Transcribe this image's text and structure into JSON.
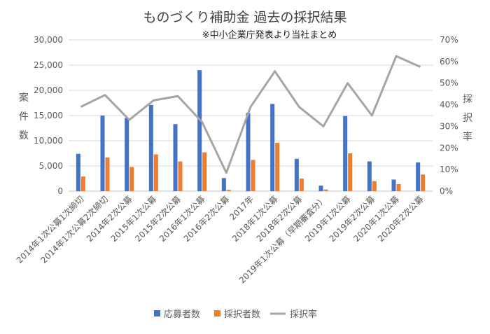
{
  "chart_data": {
    "type": "bar",
    "title": "ものづくり補助金 過去の採択結果",
    "subtitle": "※中小企業庁発表より当社まとめ",
    "ylabel": "案件数",
    "y2label": "採択率",
    "ylim": [
      0,
      30000
    ],
    "y2lim": [
      0,
      0.7
    ],
    "yticks": [
      "0",
      "5,000",
      "10,000",
      "15,000",
      "20,000",
      "25,000",
      "30,000"
    ],
    "y2ticks": [
      "0%",
      "10%",
      "20%",
      "30%",
      "40%",
      "50%",
      "60%",
      "70%"
    ],
    "grid": true,
    "legend_position": "bottom",
    "categories": [
      "2014年1次公募1次締切",
      "2014年1次公募2次締切",
      "2014年2次公募",
      "2015年1次公募",
      "2015年2次公募",
      "2016年1次公募",
      "2016年2次公募",
      "2017年",
      "2018年1次公募",
      "2018年2次公募",
      "2019年1次公募（早期審査分）",
      "2019年1次公募",
      "2019年2次公募",
      "2020年1次公募",
      "2020年2次公募"
    ],
    "series": [
      {
        "name": "応募者数",
        "type": "bar",
        "axis": "left",
        "color": "#4472C4",
        "values": [
          7400,
          15000,
          14500,
          17100,
          13300,
          24000,
          2600,
          15500,
          17300,
          6400,
          1100,
          14900,
          5900,
          2300,
          5700
        ]
      },
      {
        "name": "採択者数",
        "type": "bar",
        "axis": "left",
        "color": "#ED7D31",
        "values": [
          2900,
          6700,
          4800,
          7300,
          5900,
          7700,
          250,
          6200,
          9600,
          2500,
          320,
          7500,
          2000,
          1400,
          3300
        ]
      },
      {
        "name": "採択率",
        "type": "line",
        "axis": "right",
        "color": "#A5A5A5",
        "values": [
          0.39,
          0.445,
          0.33,
          0.42,
          0.44,
          0.32,
          0.085,
          0.39,
          0.555,
          0.39,
          0.3,
          0.5,
          0.35,
          0.625,
          0.575
        ]
      }
    ]
  }
}
